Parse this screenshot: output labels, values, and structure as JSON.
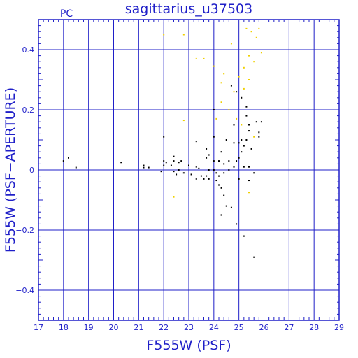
{
  "chart_data": {
    "type": "scatter",
    "title": "sagittarius_u37503",
    "corner_label": "PC",
    "xlabel": "F555W (PSF)",
    "ylabel": "F555W (PSF−APERTURE)",
    "xlim": [
      17,
      29
    ],
    "ylim": [
      -0.5,
      0.5
    ],
    "x_ticks": [
      17,
      18,
      19,
      20,
      21,
      22,
      23,
      24,
      25,
      26,
      27,
      28,
      29
    ],
    "y_ticks": [
      -0.4,
      -0.2,
      0,
      0.2,
      0.4
    ],
    "y_tick_labels": [
      "−0.4",
      "−0.2",
      "0",
      "0.2",
      "0.4"
    ],
    "grid": true,
    "colors": {
      "axis": "#1f1fc8",
      "grid": "#1f1fc8",
      "primary": "#000000",
      "secondary": "#f0d000"
    },
    "series": [
      {
        "color": "#000000",
        "points": [
          [
            18.0,
            0.03
          ],
          [
            18.2,
            0.04
          ],
          [
            18.5,
            0.008
          ],
          [
            20.3,
            0.025
          ],
          [
            21.2,
            0.008
          ],
          [
            21.2,
            0.015
          ],
          [
            21.4,
            0.008
          ],
          [
            21.9,
            -0.005
          ],
          [
            22.0,
            0.11
          ],
          [
            22.0,
            0.03
          ],
          [
            22.0,
            0.015
          ],
          [
            22.1,
            0.025
          ],
          [
            22.3,
            0.015
          ],
          [
            22.4,
            0.045
          ],
          [
            22.4,
            0.03
          ],
          [
            22.4,
            -0.005
          ],
          [
            22.5,
            -0.015
          ],
          [
            22.6,
            0.025
          ],
          [
            22.6,
            0.0
          ],
          [
            22.7,
            0.03
          ],
          [
            22.8,
            -0.01
          ],
          [
            23.0,
            0.015
          ],
          [
            23.1,
            -0.015
          ],
          [
            23.3,
            0.095
          ],
          [
            23.3,
            0.01
          ],
          [
            23.3,
            -0.03
          ],
          [
            23.4,
            0.005
          ],
          [
            23.5,
            -0.02
          ],
          [
            23.6,
            -0.03
          ],
          [
            23.7,
            0.07
          ],
          [
            23.7,
            0.04
          ],
          [
            23.7,
            -0.02
          ],
          [
            23.8,
            0.05
          ],
          [
            23.8,
            0.0
          ],
          [
            23.8,
            -0.03
          ],
          [
            24.0,
            0.2
          ],
          [
            24.0,
            0.11
          ],
          [
            24.0,
            0.03
          ],
          [
            24.0,
            0.0
          ],
          [
            24.1,
            -0.01
          ],
          [
            24.1,
            -0.035
          ],
          [
            24.2,
            0.03
          ],
          [
            24.2,
            -0.02
          ],
          [
            24.2,
            -0.05
          ],
          [
            24.3,
            -0.15
          ],
          [
            24.3,
            -0.06
          ],
          [
            24.3,
            0.06
          ],
          [
            24.4,
            0.02
          ],
          [
            24.4,
            -0.01
          ],
          [
            24.4,
            -0.085
          ],
          [
            24.5,
            0.1
          ],
          [
            24.5,
            -0.12
          ],
          [
            24.6,
            0.0
          ],
          [
            24.6,
            0.03
          ],
          [
            24.7,
            0.28
          ],
          [
            24.7,
            -0.125
          ],
          [
            24.8,
            0.15
          ],
          [
            24.8,
            0.09
          ],
          [
            24.8,
            0.01
          ],
          [
            24.9,
            0.26
          ],
          [
            24.9,
            0.03
          ],
          [
            24.9,
            -0.18
          ],
          [
            25.0,
            0.09
          ],
          [
            25.0,
            0.04
          ],
          [
            25.0,
            -0.03
          ],
          [
            25.1,
            0.24
          ],
          [
            25.1,
            0.1
          ],
          [
            25.1,
            0.06
          ],
          [
            25.2,
            0.08
          ],
          [
            25.2,
            0.01
          ],
          [
            25.2,
            -0.22
          ],
          [
            25.3,
            0.21
          ],
          [
            25.3,
            0.18
          ],
          [
            25.3,
            0.1
          ],
          [
            25.4,
            0.15
          ],
          [
            25.4,
            0.13
          ],
          [
            25.4,
            0.01
          ],
          [
            25.4,
            -0.035
          ],
          [
            25.5,
            0.07
          ],
          [
            25.6,
            -0.29
          ],
          [
            25.6,
            -0.01
          ],
          [
            25.7,
            0.16
          ],
          [
            25.8,
            0.11
          ],
          [
            25.8,
            0.125
          ],
          [
            25.9,
            0.16
          ]
        ]
      },
      {
        "color": "#f0d000",
        "points": [
          [
            22.0,
            0.45
          ],
          [
            22.8,
            0.45
          ],
          [
            22.8,
            0.165
          ],
          [
            22.4,
            -0.09
          ],
          [
            23.3,
            0.37
          ],
          [
            23.6,
            0.37
          ],
          [
            24.0,
            0.345
          ],
          [
            24.1,
            0.17
          ],
          [
            24.3,
            0.29
          ],
          [
            24.3,
            0.225
          ],
          [
            24.4,
            0.32
          ],
          [
            24.6,
            0.2
          ],
          [
            24.7,
            0.42
          ],
          [
            24.8,
            0.26
          ],
          [
            24.9,
            0.17
          ],
          [
            25.0,
            0.31
          ],
          [
            25.1,
            0.15
          ],
          [
            25.2,
            0.34
          ],
          [
            25.2,
            0.27
          ],
          [
            25.3,
            0.47
          ],
          [
            25.4,
            0.38
          ],
          [
            25.4,
            0.3
          ],
          [
            25.5,
            0.46
          ],
          [
            25.6,
            0.36
          ],
          [
            25.7,
            0.44
          ],
          [
            25.8,
            0.47
          ],
          [
            25.9,
            0.39
          ],
          [
            25.6,
            0.11
          ],
          [
            25.4,
            -0.075
          ]
        ]
      }
    ]
  }
}
